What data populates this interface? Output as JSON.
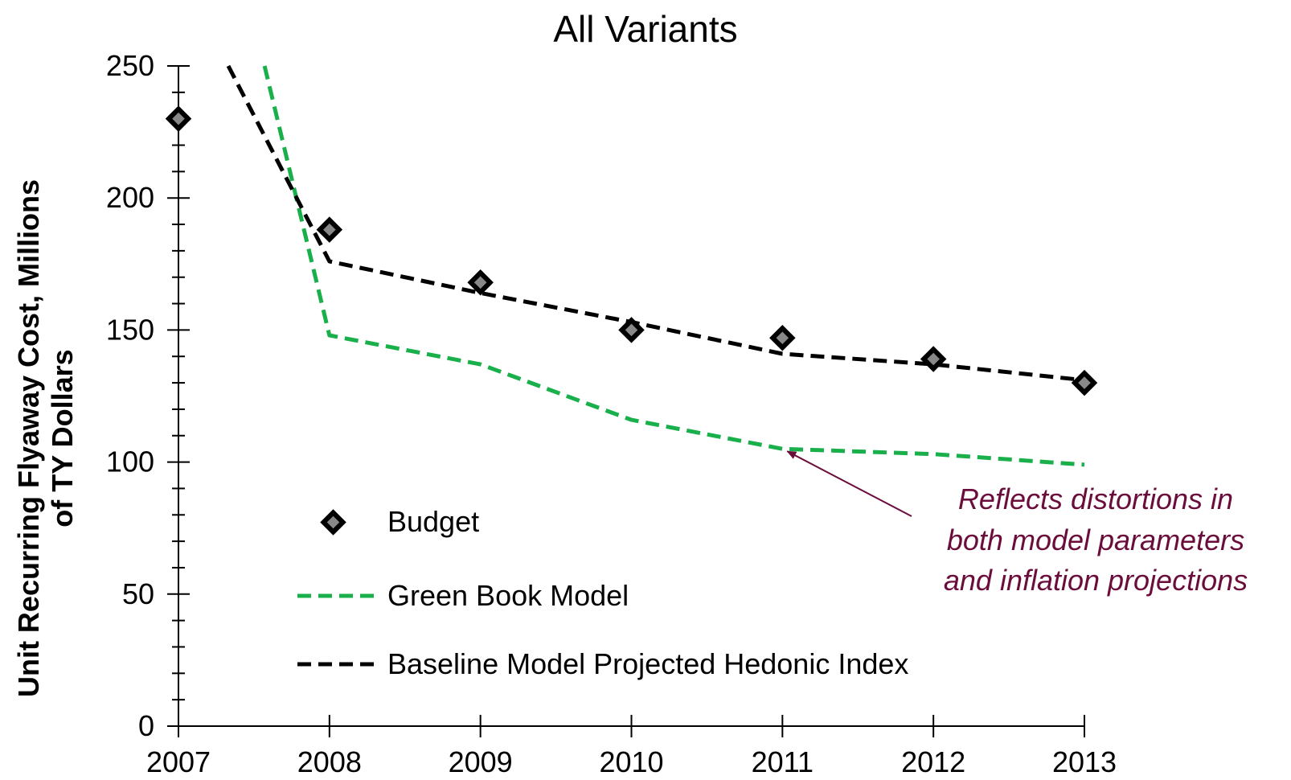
{
  "chart_data": {
    "type": "line",
    "title": "All Variants",
    "ylabel": [
      "Unit Recurring Flyaway Cost, Millions",
      "of TY Dollars"
    ],
    "xlabel": "",
    "xlim": [
      2007,
      2013
    ],
    "ylim": [
      0,
      250
    ],
    "x_ticks": [
      "2007",
      "2008",
      "2009",
      "2010",
      "2011",
      "2012",
      "2013"
    ],
    "y_ticks": [
      "0",
      "50",
      "100",
      "150",
      "200",
      "250"
    ],
    "y_tick_values": [
      0,
      50,
      100,
      150,
      200,
      250
    ],
    "y_minor_step": 10,
    "grid": false,
    "legend_position": "lower-left",
    "series": [
      {
        "name": "Budget",
        "style": "diamond-markers",
        "color": "#000000",
        "fill": "#888888",
        "points": [
          [
            2007,
            230
          ],
          [
            2008,
            188
          ],
          [
            2009,
            168
          ],
          [
            2010,
            150
          ],
          [
            2011,
            147
          ],
          [
            2012,
            139
          ],
          [
            2013,
            130
          ]
        ]
      },
      {
        "name": "Green Book Model",
        "style": "dashed",
        "color": "#19b04b",
        "points": [
          [
            2007.57,
            250
          ],
          [
            2008,
            148
          ],
          [
            2009,
            137
          ],
          [
            2010,
            116
          ],
          [
            2011,
            105
          ],
          [
            2012,
            103
          ],
          [
            2013,
            99
          ]
        ]
      },
      {
        "name": "Baseline Model Projected Hedonic Index",
        "style": "dashed",
        "color": "#000000",
        "points": [
          [
            2007.33,
            250
          ],
          [
            2008,
            176
          ],
          [
            2009,
            164
          ],
          [
            2010,
            153
          ],
          [
            2011,
            141
          ],
          [
            2012,
            137
          ],
          [
            2013,
            131
          ]
        ]
      }
    ],
    "annotation": {
      "lines": [
        "Reflects distortions in",
        "both model parameters",
        "and inflation projections"
      ],
      "color": "#6b0d3b",
      "arrow_target": [
        2011,
        105
      ]
    }
  }
}
